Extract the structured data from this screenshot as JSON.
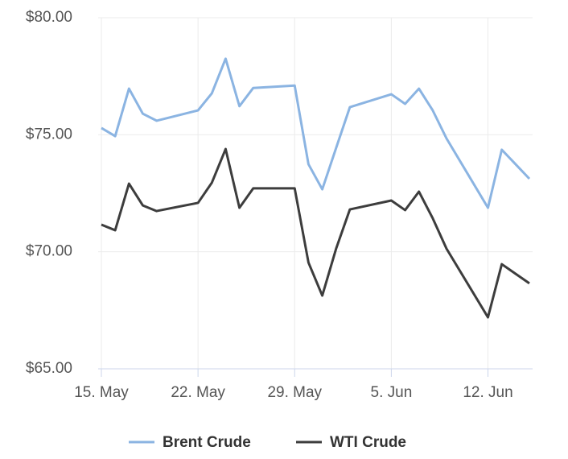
{
  "chart_data": {
    "type": "line",
    "x": [
      "05-15",
      "05-16",
      "05-17",
      "05-18",
      "05-19",
      "05-22",
      "05-23",
      "05-24",
      "05-25",
      "05-26",
      "05-29",
      "05-30",
      "05-31",
      "06-01",
      "06-02",
      "06-05",
      "06-06",
      "06-07",
      "06-08",
      "06-09",
      "06-12",
      "06-13",
      "06-14",
      "06-15"
    ],
    "series": [
      {
        "name": "Brent Crude",
        "color": "#8bb4e2",
        "values": [
          75.29,
          74.94,
          76.97,
          75.9,
          75.6,
          76.04,
          76.77,
          78.25,
          76.22,
          77.0,
          77.1,
          73.74,
          72.67,
          74.43,
          76.18,
          76.73,
          76.32,
          76.97,
          76.04,
          74.84,
          71.88,
          74.36,
          73.74,
          73.12
        ]
      },
      {
        "name": "WTI Crude",
        "color": "#3d3d3d",
        "values": [
          71.16,
          70.92,
          72.91,
          71.98,
          71.74,
          72.09,
          72.95,
          74.39,
          71.88,
          72.71,
          72.71,
          69.54,
          68.13,
          70.13,
          71.81,
          72.19,
          71.78,
          72.57,
          71.43,
          70.13,
          67.2,
          69.47,
          69.06,
          68.65
        ]
      }
    ],
    "xlim": [
      "05-15",
      "06-15"
    ],
    "xticks": [
      {
        "value": "05-15",
        "label": "15. May"
      },
      {
        "value": "05-22",
        "label": "22. May"
      },
      {
        "value": "05-29",
        "label": "29. May"
      },
      {
        "value": "06-05",
        "label": "5. Jun"
      },
      {
        "value": "06-12",
        "label": "12. Jun"
      }
    ],
    "ylim": [
      65,
      80
    ],
    "yticks": [
      {
        "value": 65,
        "label": "$65.00"
      },
      {
        "value": 70,
        "label": "$70.00"
      },
      {
        "value": 75,
        "label": "$75.00"
      },
      {
        "value": 80,
        "label": "$80.00"
      }
    ],
    "grid": true,
    "legend": "bottom"
  }
}
